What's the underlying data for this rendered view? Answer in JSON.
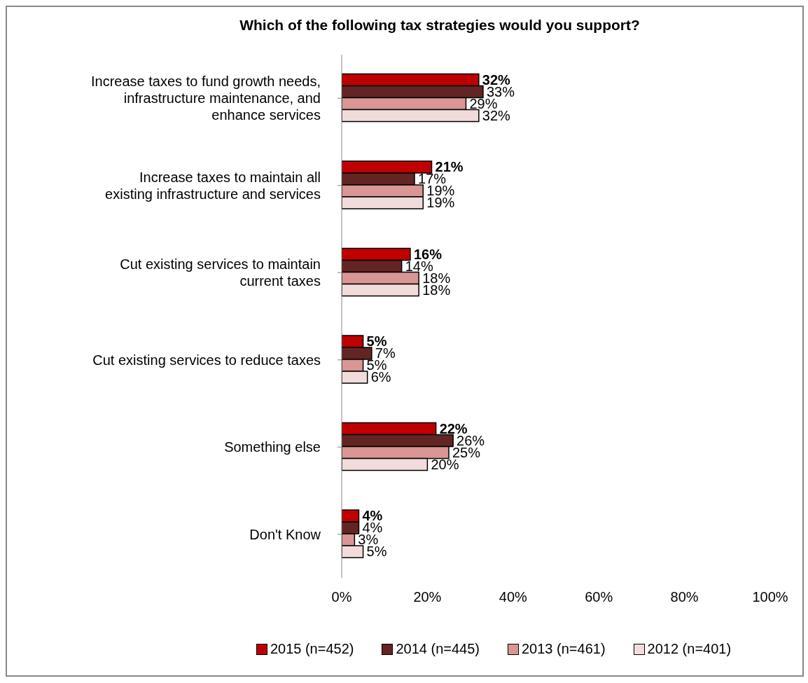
{
  "chart_data": {
    "type": "bar",
    "orientation": "horizontal",
    "title": "Which of the following tax strategies would you support?",
    "categories": [
      "Increase taxes to fund growth needs, infrastructure maintenance, and enhance services",
      "Increase taxes to maintain all existing infrastructure and services",
      "Cut existing services to maintain current taxes",
      "Cut existing services to reduce taxes",
      "Something else",
      "Don't Know"
    ],
    "series": [
      {
        "name": "2015 (n=452)",
        "color": "#c00000",
        "values": [
          32,
          21,
          16,
          5,
          22,
          4
        ],
        "value_labels": [
          "32%",
          "21%",
          "16%",
          "5%",
          "22%",
          "4%"
        ]
      },
      {
        "name": "2014 (n=445)",
        "color": "#632523",
        "values": [
          33,
          17,
          14,
          7,
          26,
          4
        ],
        "value_labels": [
          "33%",
          "17%",
          "14%",
          "7%",
          "26%",
          "4%"
        ]
      },
      {
        "name": "2013 (n=461)",
        "color": "#d99694",
        "values": [
          29,
          19,
          18,
          5,
          25,
          3
        ],
        "value_labels": [
          "29%",
          "19%",
          "18%",
          "5%",
          "25%",
          "3%"
        ]
      },
      {
        "name": "2012 (n=401)",
        "color": "#f2dcdb",
        "values": [
          32,
          19,
          18,
          6,
          20,
          5
        ],
        "value_labels": [
          "32%",
          "19%",
          "18%",
          "6%",
          "20%",
          "5%"
        ]
      }
    ],
    "xlim": [
      0,
      100
    ],
    "xticks": [
      {
        "value": 0,
        "label": "0%"
      },
      {
        "value": 20,
        "label": "20%"
      },
      {
        "value": 40,
        "label": "40%"
      },
      {
        "value": 60,
        "label": "60%"
      },
      {
        "value": 80,
        "label": "80%"
      },
      {
        "value": 100,
        "label": "100%"
      }
    ],
    "grid": false,
    "legend": "bottom"
  }
}
